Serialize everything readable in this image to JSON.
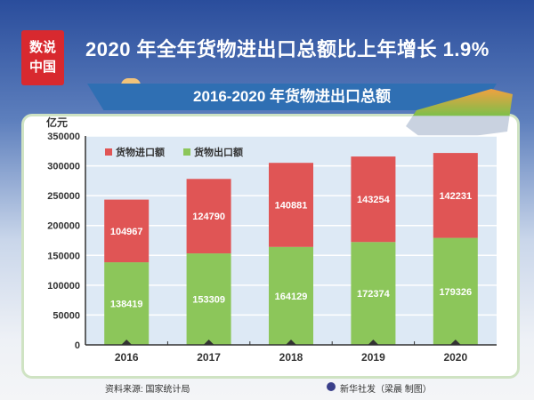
{
  "logo_text": "数说中国",
  "title": "2020 年全年货物进出口总额比上年增长 1.9%",
  "source": "资料来源: 国家统计局",
  "credit": "新华社发（梁晨 制图）",
  "chart_data": {
    "type": "bar",
    "stacked": true,
    "title": "2016-2020 年货物进出口总额",
    "ylabel": "亿元",
    "ylim": [
      0,
      350000
    ],
    "yticks": [
      0,
      50000,
      100000,
      150000,
      200000,
      250000,
      300000,
      350000
    ],
    "grid": true,
    "legend_position": "top-left",
    "categories": [
      "2016",
      "2017",
      "2018",
      "2019",
      "2020"
    ],
    "series": [
      {
        "name": "货物出口额",
        "color": "#8cc65a",
        "values": [
          138419,
          153309,
          164129,
          172374,
          179326
        ]
      },
      {
        "name": "货物进口额",
        "color": "#e05555",
        "values": [
          104967,
          124790,
          140881,
          143254,
          142231
        ]
      }
    ]
  }
}
